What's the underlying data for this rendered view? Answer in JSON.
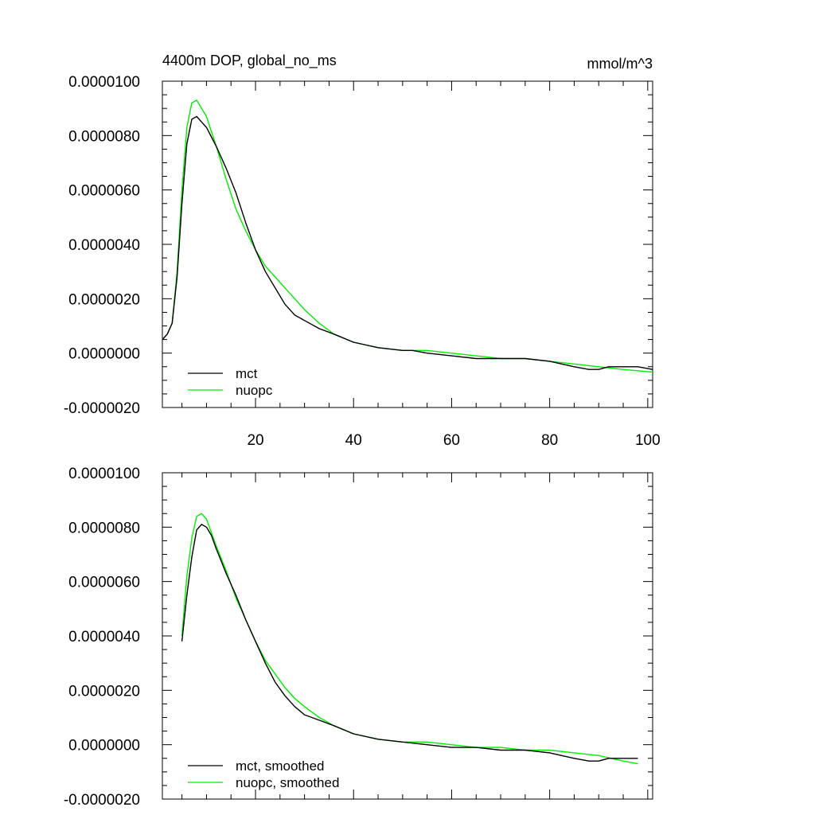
{
  "chart_data": [
    {
      "type": "line",
      "title": "4400m DOP, global_no_ms",
      "units": "mmol/m^3",
      "xlim": [
        1,
        101
      ],
      "ylim": [
        -2e-06,
        1e-05
      ],
      "x_ticks": [
        20,
        40,
        60,
        80,
        100
      ],
      "x_tick_labels": [
        "20",
        "40",
        "60",
        "80",
        "100"
      ],
      "y_ticks": [
        -2e-06,
        0,
        2e-06,
        4e-06,
        6e-06,
        8e-06,
        1e-05
      ],
      "y_tick_labels": [
        "-0.0000020",
        "0.0000000",
        "0.0000020",
        "0.0000040",
        "0.0000060",
        "0.0000080",
        "0.0000100"
      ],
      "legend": "bottom-left",
      "series": [
        {
          "name": "mct",
          "color": "#000000",
          "x": [
            1,
            2,
            3,
            4,
            5,
            6,
            7,
            8,
            9,
            10,
            12,
            14,
            16,
            18,
            20,
            22,
            24,
            26,
            28,
            30,
            33,
            36,
            40,
            45,
            50,
            52,
            55,
            60,
            65,
            70,
            75,
            80,
            85,
            88,
            90,
            92,
            94,
            96,
            98,
            101
          ],
          "y": [
            5e-07,
            7e-07,
            1.1e-06,
            2.8e-06,
            5.5e-06,
            7.7e-06,
            8.6e-06,
            8.7e-06,
            8.5e-06,
            8.3e-06,
            7.6e-06,
            6.8e-06,
            5.9e-06,
            4.8e-06,
            3.8e-06,
            3e-06,
            2.4e-06,
            1.8e-06,
            1.4e-06,
            1.2e-06,
            9e-07,
            7e-07,
            4e-07,
            2e-07,
            1e-07,
            1e-07,
            0.0,
            -1e-07,
            -2e-07,
            -2e-07,
            -2e-07,
            -3e-07,
            -5e-07,
            -6e-07,
            -6e-07,
            -5e-07,
            -5e-07,
            -5e-07,
            -5e-07,
            -6e-07
          ]
        },
        {
          "name": "nuopc",
          "color": "#00ee00",
          "x": [
            1,
            2,
            3,
            4,
            5,
            6,
            7,
            8,
            9,
            10,
            12,
            14,
            16,
            18,
            20,
            22,
            24,
            26,
            28,
            30,
            33,
            36,
            40,
            45,
            50,
            55,
            60,
            65,
            70,
            75,
            80,
            85,
            90,
            95,
            101
          ],
          "y": [
            5e-07,
            7e-07,
            1.1e-06,
            3e-06,
            6e-06,
            8.3e-06,
            9.2e-06,
            9.3e-06,
            9e-06,
            8.7e-06,
            7.6e-06,
            6.4e-06,
            5.3e-06,
            4.5e-06,
            3.8e-06,
            3.2e-06,
            2.8e-06,
            2.4e-06,
            2e-06,
            1.6e-06,
            1.1e-06,
            7e-07,
            4e-07,
            2e-07,
            1e-07,
            1e-07,
            0.0,
            -1e-07,
            -2e-07,
            -2e-07,
            -3e-07,
            -4e-07,
            -5e-07,
            -6e-07,
            -7e-07
          ]
        }
      ]
    },
    {
      "type": "line",
      "xlim": [
        1,
        101
      ],
      "ylim": [
        -2e-06,
        1e-05
      ],
      "x_ticks": [
        20,
        40,
        60,
        80,
        100
      ],
      "y_ticks": [
        -2e-06,
        0,
        2e-06,
        4e-06,
        6e-06,
        8e-06,
        1e-05
      ],
      "y_tick_labels": [
        "-0.0000020",
        "0.0000000",
        "0.0000020",
        "0.0000040",
        "0.0000060",
        "0.0000080",
        "0.0000100"
      ],
      "legend": "bottom-left",
      "series": [
        {
          "name": "mct, smoothed",
          "color": "#000000",
          "x": [
            5,
            6,
            7,
            8,
            9,
            10,
            11,
            12,
            14,
            16,
            18,
            20,
            22,
            24,
            26,
            28,
            30,
            33,
            36,
            40,
            45,
            50,
            55,
            60,
            65,
            70,
            75,
            80,
            85,
            88,
            90,
            92,
            94,
            96,
            98
          ],
          "y": [
            3.8e-06,
            5.5e-06,
            6.9e-06,
            7.9e-06,
            8.1e-06,
            8e-06,
            7.7e-06,
            7.2e-06,
            6.3e-06,
            5.5e-06,
            4.6e-06,
            3.8e-06,
            3e-06,
            2.3e-06,
            1.8e-06,
            1.4e-06,
            1.1e-06,
            9e-07,
            7e-07,
            4e-07,
            2e-07,
            1e-07,
            0.0,
            -1e-07,
            -1e-07,
            -2e-07,
            -2e-07,
            -3e-07,
            -5e-07,
            -6e-07,
            -6e-07,
            -5e-07,
            -5e-07,
            -5e-07,
            -5e-07
          ]
        },
        {
          "name": "nuopc, smoothed",
          "color": "#00ee00",
          "x": [
            5,
            6,
            7,
            8,
            9,
            10,
            11,
            12,
            14,
            16,
            18,
            20,
            22,
            24,
            26,
            28,
            30,
            33,
            36,
            40,
            45,
            50,
            55,
            60,
            65,
            70,
            75,
            80,
            85,
            90,
            95,
            98
          ],
          "y": [
            4e-06,
            6.2e-06,
            7.6e-06,
            8.4e-06,
            8.5e-06,
            8.3e-06,
            7.8e-06,
            7.3e-06,
            6.4e-06,
            5.4e-06,
            4.6e-06,
            3.8e-06,
            3.1e-06,
            2.6e-06,
            2.1e-06,
            1.7e-06,
            1.4e-06,
            1e-06,
            7e-07,
            4e-07,
            2e-07,
            1e-07,
            1e-07,
            0.0,
            -1e-07,
            -1e-07,
            -2e-07,
            -2e-07,
            -3e-07,
            -4e-07,
            -6e-07,
            -7e-07
          ]
        }
      ]
    }
  ]
}
